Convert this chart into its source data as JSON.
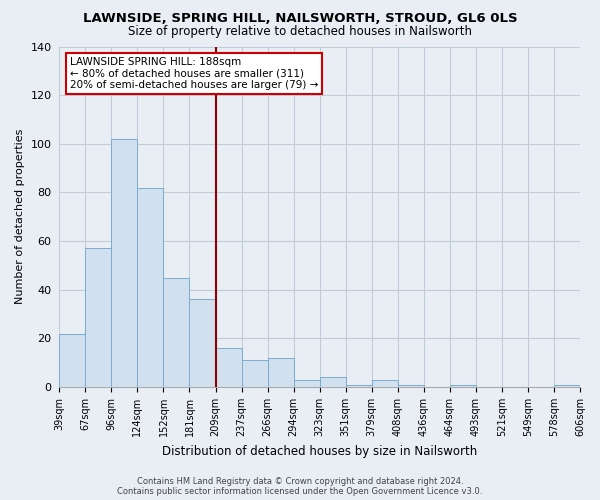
{
  "title": "LAWNSIDE, SPRING HILL, NAILSWORTH, STROUD, GL6 0LS",
  "subtitle": "Size of property relative to detached houses in Nailsworth",
  "xlabel": "Distribution of detached houses by size in Nailsworth",
  "ylabel": "Number of detached properties",
  "bar_heights": [
    22,
    57,
    102,
    82,
    45,
    36,
    16,
    11,
    12,
    3,
    4,
    1,
    3,
    1,
    0,
    1,
    0,
    0,
    0,
    1
  ],
  "bar_labels": [
    "39sqm",
    "67sqm",
    "96sqm",
    "124sqm",
    "152sqm",
    "181sqm",
    "209sqm",
    "237sqm",
    "266sqm",
    "294sqm",
    "323sqm",
    "351sqm",
    "379sqm",
    "408sqm",
    "436sqm",
    "464sqm",
    "493sqm",
    "521sqm",
    "549sqm",
    "578sqm",
    "606sqm"
  ],
  "bar_color": "#d0e0ef",
  "bar_edge_color": "#7aabcf",
  "vline_color": "#8b0000",
  "ylim": [
    0,
    140
  ],
  "yticks": [
    0,
    20,
    40,
    60,
    80,
    100,
    120,
    140
  ],
  "annotation_title": "LAWNSIDE SPRING HILL: 188sqm",
  "annotation_line1": "← 80% of detached houses are smaller (311)",
  "annotation_line2": "20% of semi-detached houses are larger (79) →",
  "footer1": "Contains HM Land Registry data © Crown copyright and database right 2024.",
  "footer2": "Contains public sector information licensed under the Open Government Licence v3.0.",
  "bg_color": "#e8eef4",
  "grid_color": "#c0ccd8"
}
